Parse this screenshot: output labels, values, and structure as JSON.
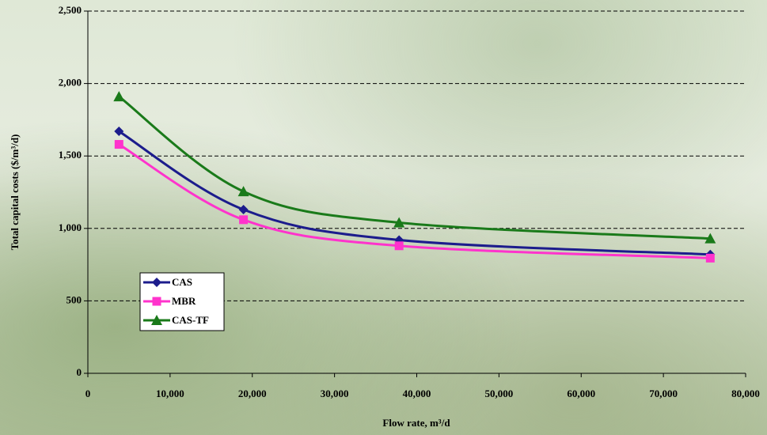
{
  "chart_data": {
    "type": "line",
    "x_label": "Flow rate, m³/d",
    "y_label": "Total capital costs ($/m³/d)",
    "x": [
      3785,
      18925,
      37850,
      75700
    ],
    "series": [
      {
        "name": "CAS",
        "color": "#1c1c8c",
        "marker": "diamond",
        "values": [
          1670,
          1130,
          920,
          820
        ]
      },
      {
        "name": "MBR",
        "color": "#ff33cc",
        "marker": "square",
        "values": [
          1580,
          1060,
          880,
          795
        ]
      },
      {
        "name": "CAS-TF",
        "color": "#1a7a1a",
        "marker": "triangle",
        "values": [
          1910,
          1255,
          1040,
          930
        ]
      }
    ],
    "xlim": [
      0,
      80000
    ],
    "xticks": [
      0,
      {
        "value": 10000,
        "label": "10,000"
      },
      {
        "value": 20000,
        "label": "20,000"
      },
      {
        "value": 30000,
        "label": "30,000"
      },
      {
        "value": 40000,
        "label": "40,000"
      },
      {
        "value": 50000,
        "label": "50,000"
      },
      {
        "value": 60000,
        "label": "60,000"
      },
      {
        "value": 70000,
        "label": "70,000"
      },
      {
        "value": 80000,
        "label": "80,000"
      }
    ],
    "ylim": [
      0,
      2500
    ],
    "yticks": [
      0,
      500,
      {
        "value": 1000,
        "label": "1,000"
      },
      {
        "value": 1500,
        "label": "1,500"
      },
      {
        "value": 2000,
        "label": "2,000"
      },
      {
        "value": 2500,
        "label": "2,500"
      }
    ],
    "grid": true,
    "legend": "lower left"
  }
}
